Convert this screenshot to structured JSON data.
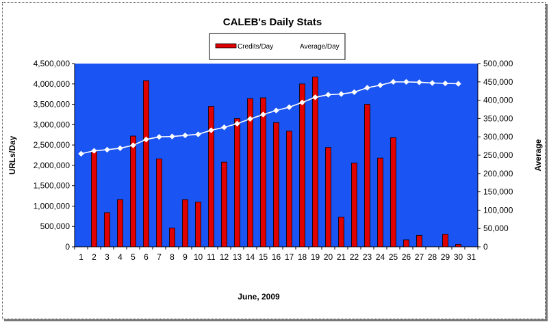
{
  "chart_data": {
    "type": "bar",
    "title": "CALEB's Daily Stats",
    "xlabel": "June, 2009",
    "ylabel": "URLs/Day",
    "y2label": "Average",
    "ylim": [
      0,
      4500000
    ],
    "y2lim": [
      0,
      500000
    ],
    "yticks": [
      "0",
      "500,000",
      "1,000,000",
      "1,500,000",
      "2,000,000",
      "2,500,000",
      "3,000,000",
      "3,500,000",
      "4,000,000",
      "4,500,000"
    ],
    "y2ticks": [
      "0",
      "50,000",
      "100,000",
      "150,000",
      "200,000",
      "250,000",
      "300,000",
      "350,000",
      "400,000",
      "450,000",
      "500,000"
    ],
    "categories": [
      "1",
      "2",
      "3",
      "4",
      "5",
      "6",
      "7",
      "8",
      "9",
      "10",
      "11",
      "12",
      "13",
      "14",
      "15",
      "16",
      "17",
      "18",
      "19",
      "20",
      "21",
      "22",
      "23",
      "24",
      "25",
      "26",
      "27",
      "28",
      "29",
      "30",
      "31"
    ],
    "legend_position": "top-center",
    "plot_background": "#1a54f2",
    "series": [
      {
        "name": "Credits/Day",
        "kind": "bar",
        "axis": "left",
        "color": "#e00000",
        "values": [
          0,
          2350000,
          840000,
          1160000,
          2720000,
          4080000,
          2160000,
          460000,
          1160000,
          1100000,
          3450000,
          2080000,
          3150000,
          3640000,
          3660000,
          3050000,
          2840000,
          4000000,
          4170000,
          2440000,
          730000,
          2060000,
          3500000,
          2180000,
          2680000,
          170000,
          280000,
          0,
          310000,
          60000,
          null
        ]
      },
      {
        "name": "Average/Day",
        "kind": "line",
        "axis": "right",
        "color": "#ffffff",
        "values": [
          254000,
          262000,
          265000,
          269000,
          277000,
          293000,
          300000,
          301000,
          304000,
          307000,
          318000,
          326000,
          336000,
          349000,
          361000,
          372000,
          381000,
          394000,
          408000,
          415000,
          417000,
          422000,
          434000,
          441000,
          450000,
          450000,
          449000,
          447000,
          446000,
          445000,
          null
        ]
      }
    ]
  }
}
